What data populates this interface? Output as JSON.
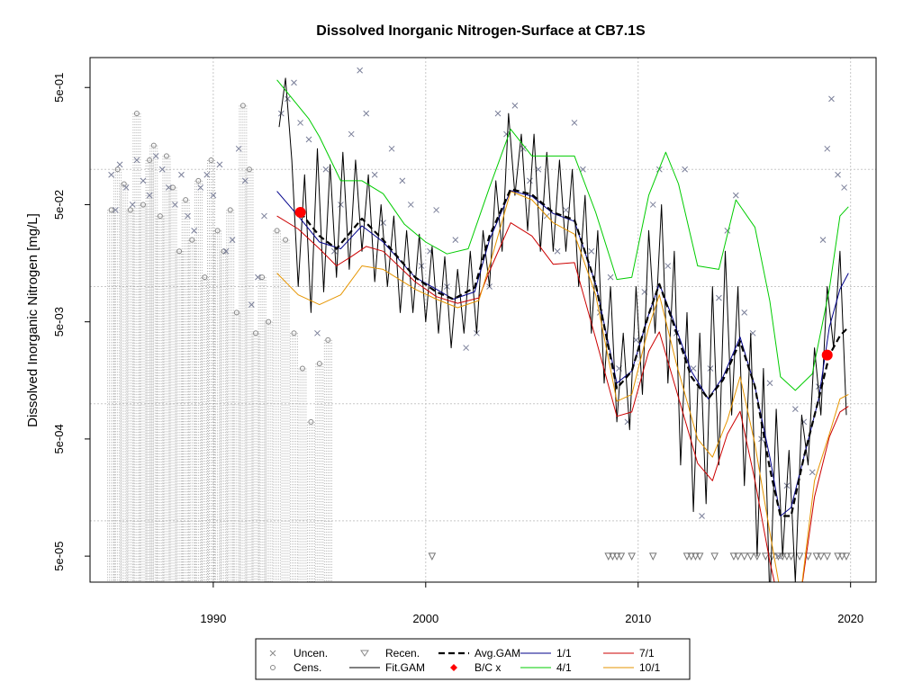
{
  "chart_data": {
    "type": "line",
    "title": "Dissolved Inorganic Nitrogen-Surface at CB7.1S",
    "xlabel": "",
    "ylabel": "Dissolved Inorganic Nitrogen [mg/L]",
    "x_scale": "linear",
    "y_scale": "log10",
    "xlim": [
      1984.2,
      2021.2
    ],
    "ylim": [
      3e-05,
      0.9
    ],
    "x_ticks": [
      1990,
      2000,
      2010,
      2020
    ],
    "x_tick_labels": [
      "1990",
      "2000",
      "2010",
      "2020"
    ],
    "y_ticks": [
      5e-05,
      0.0005,
      0.005,
      0.05,
      0.5
    ],
    "y_tick_labels": [
      "5e-05",
      "5e-04",
      "5e-03",
      "5e-02",
      "5e-01"
    ],
    "grid_x": [
      1990,
      2000,
      2010,
      2020
    ],
    "grid_y": [
      0.0001,
      0.001,
      0.01,
      0.1
    ],
    "grid": true,
    "legend_position": "bottom",
    "legend": [
      {
        "label": "Uncen.",
        "symbol": "x",
        "color": "#888888"
      },
      {
        "label": "Cens.",
        "symbol": "o",
        "color": "#888888"
      },
      {
        "label": "Recen.",
        "symbol": "triangle-down",
        "color": "#888888"
      },
      {
        "label": "Fit.GAM",
        "symbol": "line",
        "color": "#000000"
      },
      {
        "label": "Avg.GAM",
        "symbol": "dashed",
        "color": "#000000"
      },
      {
        "label": "B/C x",
        "symbol": "diamond",
        "color": "#ff0000"
      },
      {
        "label": "1/1",
        "symbol": "line",
        "color": "#00008b"
      },
      {
        "label": "4/1",
        "symbol": "line",
        "color": "#00cc00"
      },
      {
        "label": "7/1",
        "symbol": "line",
        "color": "#cc0000"
      },
      {
        "label": "10/1",
        "symbol": "line",
        "color": "#e69500"
      }
    ],
    "series": [
      {
        "name": "Avg.GAM",
        "color": "#000000",
        "style": "dashed",
        "x": [
          1994.1,
          1995.0,
          1995.8,
          1997.0,
          1998.0,
          1999.5,
          2000.5,
          2001.3,
          2002.3,
          2003.0,
          2004.0,
          2005.0,
          2006.0,
          2007.0,
          2008.0,
          2009.0,
          2009.7,
          2010.5,
          2011.0,
          2011.6,
          2012.5,
          2013.3,
          2014.0,
          2014.8,
          2015.5,
          2016.2,
          2016.7,
          2017.2,
          2017.8,
          2018.5,
          2019.0,
          2019.5,
          2019.9
        ],
        "y": [
          0.043,
          0.027,
          0.021,
          0.038,
          0.025,
          0.012,
          0.009,
          0.0078,
          0.0098,
          0.027,
          0.068,
          0.061,
          0.043,
          0.037,
          0.0105,
          0.00135,
          0.0019,
          0.0058,
          0.0105,
          0.0052,
          0.0017,
          0.0011,
          0.0016,
          0.0034,
          0.0014,
          0.00028,
          0.00011,
          0.00011,
          0.00035,
          0.0011,
          0.0026,
          0.0038,
          0.0045
        ]
      },
      {
        "name": "1/1",
        "color": "#00008b",
        "style": "solid",
        "x": [
          1993.0,
          1994.0,
          1995.0,
          1996.0,
          1997.0,
          1998.0,
          1999.5,
          2000.5,
          2001.3,
          2002.3,
          2003.0,
          2004.0,
          2005.0,
          2006.0,
          2007.0,
          2008.0,
          2009.0,
          2009.7,
          2010.5,
          2011.0,
          2011.6,
          2012.5,
          2013.3,
          2014.0,
          2014.8,
          2015.5,
          2016.2,
          2016.7,
          2017.2,
          2017.8,
          2018.5,
          2019.0,
          2019.5,
          2019.9
        ],
        "y": [
          0.065,
          0.04,
          0.024,
          0.021,
          0.033,
          0.024,
          0.012,
          0.0095,
          0.0078,
          0.009,
          0.025,
          0.066,
          0.059,
          0.042,
          0.036,
          0.0105,
          0.0015,
          0.0019,
          0.0058,
          0.0105,
          0.0055,
          0.0019,
          0.0011,
          0.0017,
          0.0037,
          0.0014,
          0.00035,
          0.00011,
          0.00013,
          0.00035,
          0.0011,
          0.0045,
          0.0095,
          0.013
        ]
      },
      {
        "name": "4/1",
        "color": "#00cc00",
        "style": "solid",
        "x": [
          1993.0,
          1993.5,
          1994.5,
          1995.0,
          1996.0,
          1997.0,
          1998.0,
          1999.0,
          2000.0,
          2001.0,
          2002.0,
          2003.0,
          2004.0,
          2005.0,
          2006.0,
          2007.0,
          2008.0,
          2009.0,
          2009.7,
          2010.5,
          2011.3,
          2011.9,
          2012.8,
          2013.8,
          2014.6,
          2015.5,
          2016.2,
          2016.7,
          2017.4,
          2018.2,
          2019.0,
          2019.5,
          2019.9
        ],
        "y": [
          0.58,
          0.45,
          0.27,
          0.19,
          0.08,
          0.08,
          0.062,
          0.034,
          0.024,
          0.019,
          0.021,
          0.07,
          0.22,
          0.13,
          0.13,
          0.13,
          0.043,
          0.0115,
          0.012,
          0.06,
          0.14,
          0.075,
          0.015,
          0.014,
          0.055,
          0.032,
          0.0075,
          0.0017,
          0.0013,
          0.0018,
          0.0095,
          0.04,
          0.048
        ]
      },
      {
        "name": "7/1",
        "color": "#cc0000",
        "style": "solid",
        "x": [
          1993.0,
          1994.0,
          1995.0,
          1995.8,
          1996.5,
          1997.2,
          1998.0,
          1999.5,
          2000.5,
          2001.5,
          2002.5,
          2003.0,
          2004.0,
          2005.0,
          2006.0,
          2007.0,
          2008.0,
          2009.0,
          2009.7,
          2010.5,
          2011.0,
          2011.8,
          2012.8,
          2013.5,
          2014.2,
          2014.8,
          2015.5,
          2016.2,
          2017.0,
          2017.6,
          2018.3,
          2019.0,
          2019.5,
          2019.9
        ],
        "y": [
          0.04,
          0.031,
          0.021,
          0.015,
          0.018,
          0.022,
          0.02,
          0.011,
          0.0082,
          0.0072,
          0.008,
          0.0135,
          0.035,
          0.027,
          0.0155,
          0.016,
          0.0036,
          0.00078,
          0.00085,
          0.0028,
          0.0041,
          0.0013,
          0.00031,
          0.00022,
          0.00055,
          0.00086,
          0.00022,
          4.5e-05,
          1e-05,
          2e-05,
          0.00016,
          0.00052,
          0.00085,
          0.00095
        ]
      },
      {
        "name": "10/1",
        "color": "#e69500",
        "style": "solid",
        "x": [
          1993.0,
          1994.0,
          1995.0,
          1996.0,
          1997.0,
          1998.0,
          1999.5,
          2000.5,
          2001.5,
          2002.5,
          2003.0,
          2004.0,
          2005.0,
          2006.0,
          2007.0,
          2008.0,
          2009.0,
          2009.7,
          2010.5,
          2011.0,
          2011.8,
          2012.8,
          2013.5,
          2014.2,
          2014.8,
          2015.5,
          2016.2,
          2017.0,
          2017.6,
          2018.3,
          2019.0,
          2019.5,
          2019.9
        ],
        "y": [
          0.013,
          0.0085,
          0.007,
          0.0085,
          0.015,
          0.014,
          0.0095,
          0.0078,
          0.0066,
          0.0076,
          0.015,
          0.065,
          0.055,
          0.035,
          0.028,
          0.0085,
          0.00105,
          0.0012,
          0.0045,
          0.0085,
          0.0022,
          0.0005,
          0.00035,
          0.00072,
          0.0017,
          0.00045,
          8e-05,
          1.2e-05,
          2e-05,
          0.00022,
          0.00055,
          0.0011,
          0.0012
        ]
      },
      {
        "name": "Fit.GAM",
        "color": "#000000",
        "style": "solid",
        "oscillating": true,
        "x": [
          1993.1,
          1993.4,
          1993.7,
          1994.0,
          1994.3,
          1994.6,
          1994.9,
          1995.2,
          1995.5,
          1995.8,
          1996.1,
          1996.4,
          1996.7,
          1997.0,
          1997.3,
          1997.6,
          1997.9,
          1998.2,
          1998.5,
          1998.8,
          1999.1,
          1999.4,
          1999.7,
          2000.0,
          2000.3,
          2000.6,
          2000.9,
          2001.2,
          2001.5,
          2001.8,
          2002.1,
          2002.4,
          2002.7,
          2003.0,
          2003.3,
          2003.6,
          2003.9,
          2004.2,
          2004.5,
          2004.8,
          2005.1,
          2005.4,
          2005.7,
          2006.0,
          2006.3,
          2006.6,
          2006.9,
          2007.2,
          2007.5,
          2007.8,
          2008.1,
          2008.4,
          2008.7,
          2009.0,
          2009.3,
          2009.6,
          2009.9,
          2010.2,
          2010.5,
          2010.8,
          2011.1,
          2011.4,
          2011.7,
          2012.0,
          2012.3,
          2012.6,
          2012.9,
          2013.2,
          2013.5,
          2013.8,
          2014.1,
          2014.4,
          2014.7,
          2015.0,
          2015.3,
          2015.6,
          2015.9,
          2016.2,
          2016.5,
          2016.8,
          2017.1,
          2017.4,
          2017.7,
          2018.0,
          2018.3,
          2018.6,
          2018.9,
          2019.2,
          2019.5,
          2019.8
        ],
        "y": [
          0.23,
          0.6,
          0.12,
          0.01,
          0.09,
          0.006,
          0.15,
          0.009,
          0.11,
          0.012,
          0.14,
          0.014,
          0.12,
          0.02,
          0.09,
          0.011,
          0.05,
          0.01,
          0.04,
          0.006,
          0.03,
          0.006,
          0.028,
          0.005,
          0.022,
          0.004,
          0.018,
          0.003,
          0.014,
          0.004,
          0.02,
          0.004,
          0.03,
          0.01,
          0.08,
          0.02,
          0.3,
          0.06,
          0.2,
          0.03,
          0.2,
          0.02,
          0.14,
          0.02,
          0.12,
          0.02,
          0.1,
          0.01,
          0.06,
          0.004,
          0.03,
          0.0015,
          0.01,
          0.0007,
          0.004,
          0.0006,
          0.01,
          0.0012,
          0.03,
          0.004,
          0.05,
          0.0015,
          0.02,
          0.0003,
          0.006,
          0.00012,
          0.004,
          0.00014,
          0.01,
          0.0003,
          0.02,
          0.0008,
          0.01,
          0.0002,
          0.004,
          5e-05,
          0.002,
          2e-05,
          0.0009,
          5e-05,
          0.0004,
          3e-05,
          0.0008,
          0.0003,
          0.003,
          0.0008,
          0.01,
          0.003,
          0.02,
          0.0008
        ]
      }
    ],
    "bc_points": [
      {
        "x": 1994.1,
        "y": 0.043
      },
      {
        "x": 2018.9,
        "y": 0.0026
      }
    ],
    "uncensored": {
      "x": [
        1985.2,
        1985.4,
        1985.6,
        1985.9,
        1986.2,
        1986.4,
        1986.7,
        1987.0,
        1987.3,
        1987.6,
        1987.9,
        1988.2,
        1988.5,
        1988.8,
        1989.1,
        1989.4,
        1989.7,
        1990.0,
        1990.3,
        1990.6,
        1990.9,
        1991.2,
        1991.5,
        1991.8,
        1992.1,
        1992.4,
        1993.2,
        1993.5,
        1993.8,
        1994.1,
        1994.5,
        1994.9,
        1995.3,
        1995.7,
        1996.0,
        1996.5,
        1996.9,
        1997.2,
        1997.6,
        1998.0,
        1998.4,
        1998.9,
        1999.3,
        1999.8,
        2000.2,
        2000.5,
        2001.0,
        2001.4,
        2001.9,
        2002.4,
        2003.0,
        2003.4,
        2003.8,
        2004.2,
        2004.6,
        2004.9,
        2005.3,
        2005.7,
        2006.2,
        2006.6,
        2007.0,
        2007.4,
        2007.8,
        2008.2,
        2008.7,
        2009.1,
        2009.5,
        2009.9,
        2010.3,
        2010.7,
        2011.0,
        2011.4,
        2011.8,
        2012.2,
        2012.6,
        2013.0,
        2013.4,
        2013.8,
        2014.2,
        2014.6,
        2015.0,
        2015.4,
        2015.8,
        2016.2,
        2016.6,
        2017.0,
        2017.4,
        2017.8,
        2018.2,
        2018.5,
        2018.7,
        2018.9,
        2019.1,
        2019.4,
        2019.7
      ],
      "y": [
        0.09,
        0.045,
        0.11,
        0.07,
        0.05,
        0.12,
        0.08,
        0.06,
        0.13,
        0.1,
        0.07,
        0.05,
        0.09,
        0.04,
        0.03,
        0.07,
        0.09,
        0.06,
        0.11,
        0.02,
        0.025,
        0.15,
        0.08,
        0.007,
        0.012,
        0.04,
        0.3,
        0.4,
        0.55,
        0.25,
        0.18,
        0.004,
        0.1,
        0.02,
        0.05,
        0.2,
        0.7,
        0.3,
        0.09,
        0.035,
        0.15,
        0.08,
        0.05,
        0.015,
        0.02,
        0.045,
        0.01,
        0.025,
        0.003,
        0.004,
        0.01,
        0.3,
        0.2,
        0.35,
        0.15,
        0.08,
        0.1,
        0.04,
        0.02,
        0.045,
        0.25,
        0.1,
        0.02,
        0.006,
        0.012,
        0.002,
        0.0007,
        0.0035,
        0.009,
        0.05,
        0.1,
        0.015,
        0.004,
        0.1,
        0.002,
        0.00011,
        0.002,
        0.008,
        0.03,
        0.06,
        0.006,
        0.004,
        0.0005,
        0.0015,
        5e-05,
        0.0002,
        0.0009,
        0.0007,
        0.00026,
        0.0014,
        0.025,
        0.15,
        0.4,
        0.09,
        0.07
      ]
    },
    "censored": {
      "x": [
        1985.2,
        1985.5,
        1985.8,
        1986.1,
        1986.4,
        1986.7,
        1987.0,
        1987.2,
        1987.5,
        1987.8,
        1988.1,
        1988.4,
        1988.7,
        1989.0,
        1989.3,
        1989.6,
        1989.9,
        1990.2,
        1990.5,
        1990.8,
        1991.1,
        1991.4,
        1991.7,
        1992.0,
        1992.3,
        1992.6,
        1993.0,
        1993.4,
        1993.8,
        1994.2,
        1994.6,
        1995.0,
        1995.4
      ],
      "y": [
        0.045,
        0.1,
        0.075,
        0.045,
        0.3,
        0.05,
        0.12,
        0.16,
        0.04,
        0.13,
        0.07,
        0.02,
        0.055,
        0.025,
        0.08,
        0.012,
        0.12,
        0.03,
        0.02,
        0.045,
        0.006,
        0.35,
        0.1,
        0.004,
        0.012,
        0.005,
        0.03,
        0.025,
        0.004,
        0.002,
        0.0007,
        0.0022,
        0.0035
      ]
    },
    "recensored": {
      "x": [
        2000.3,
        2008.6,
        2008.8,
        2009.0,
        2009.2,
        2009.7,
        2010.7,
        2012.3,
        2012.5,
        2012.7,
        2012.9,
        2013.6,
        2014.5,
        2014.7,
        2015.0,
        2015.3,
        2015.6,
        2016.0,
        2016.3,
        2016.6,
        2016.8,
        2017.0,
        2017.2,
        2017.6,
        2018.0,
        2018.4,
        2018.6,
        2018.9,
        2019.4,
        2019.6,
        2019.8
      ]
    }
  }
}
